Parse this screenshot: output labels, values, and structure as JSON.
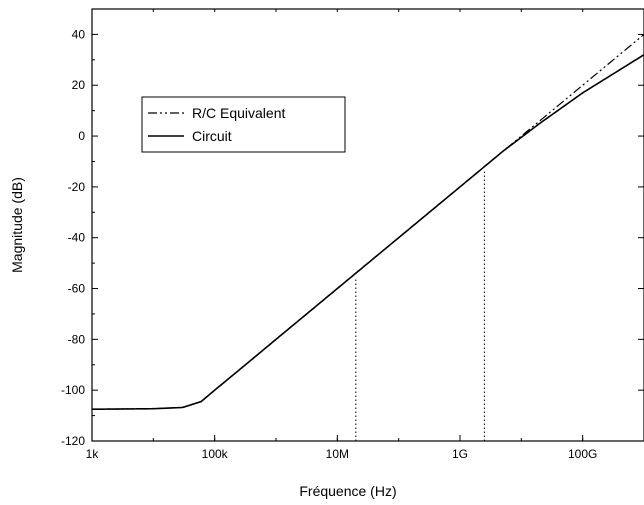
{
  "chart_data": {
    "type": "line",
    "xlabel": "Fréquence (Hz)",
    "ylabel": "Magnitude (dB)",
    "xscale": "log",
    "xlim": [
      1000,
      1000000000000
    ],
    "ylim": [
      -120,
      50
    ],
    "x_ticks": [
      {
        "value": 1000,
        "label": "1k"
      },
      {
        "value": 100000,
        "label": "100k"
      },
      {
        "value": 10000000,
        "label": "10M"
      },
      {
        "value": 1000000000,
        "label": "1G"
      },
      {
        "value": 100000000000,
        "label": "100G"
      }
    ],
    "y_ticks": [
      {
        "value": -120,
        "label": "-120"
      },
      {
        "value": -100,
        "label": "-100"
      },
      {
        "value": -80,
        "label": "-80"
      },
      {
        "value": -60,
        "label": "-60"
      },
      {
        "value": -40,
        "label": "-40"
      },
      {
        "value": -20,
        "label": "-20"
      },
      {
        "value": 0,
        "label": "0"
      },
      {
        "value": 20,
        "label": "20"
      },
      {
        "value": 40,
        "label": "40"
      }
    ],
    "legend_position": "upper-left",
    "grid": false,
    "series": [
      {
        "name": "R/C Equivalent",
        "line_style": "dash-dot-dot",
        "color": "#000000",
        "x": [
          1000,
          10000,
          30000,
          60000,
          100000,
          300000,
          1000000,
          10000000,
          100000000,
          1000000000,
          5000000000,
          20000000000,
          100000000000,
          1000000000000
        ],
        "y": [
          -107.5,
          -107.3,
          -106.8,
          -104.5,
          -100,
          -90.5,
          -80,
          -60,
          -40,
          -20,
          -6,
          6,
          20,
          40
        ]
      },
      {
        "name": "Circuit",
        "line_style": "solid",
        "color": "#000000",
        "x": [
          1000,
          10000,
          30000,
          60000,
          100000,
          300000,
          1000000,
          10000000,
          100000000,
          1000000000,
          5000000000,
          20000000000,
          100000000000,
          1000000000000
        ],
        "y": [
          -107.5,
          -107.3,
          -106.8,
          -104.5,
          -100,
          -90.5,
          -80,
          -60,
          -40,
          -20,
          -6,
          5,
          17,
          32
        ]
      }
    ],
    "markers": [
      {
        "x": 20000000,
        "y": -56
      },
      {
        "x": 2500000000,
        "y": -14
      }
    ]
  }
}
